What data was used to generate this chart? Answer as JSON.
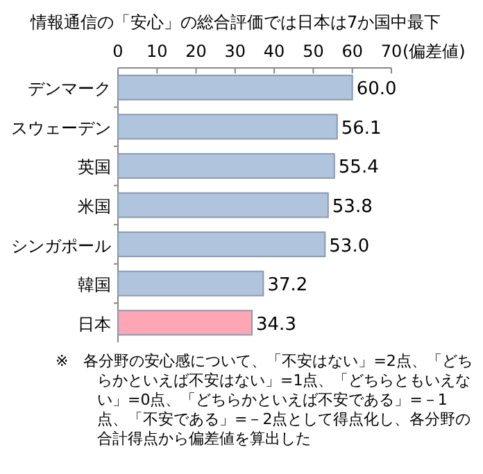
{
  "chart_data": {
    "type": "bar",
    "orientation": "horizontal",
    "title": "情報通信の「安心」の総合評価では日本は7か国中最下",
    "xlabel": "(偏差値)",
    "categories": [
      "デンマーク",
      "スウェーデン",
      "英国",
      "米国",
      "シンガポール",
      "韓国",
      "日本"
    ],
    "values": [
      60.0,
      56.1,
      55.4,
      53.8,
      53.0,
      37.2,
      34.3
    ],
    "colors": [
      "#b0c4de",
      "#b0c4de",
      "#b0c4de",
      "#b0c4de",
      "#b0c4de",
      "#b0c4de",
      "#ffa6b4"
    ],
    "value_labels": [
      "60.0",
      "56.1",
      "55.4",
      "53.8",
      "53.0",
      "37.2",
      "34.3"
    ],
    "xlim": [
      0,
      70
    ],
    "xticks": [
      0,
      10,
      20,
      30,
      40,
      50,
      60,
      70
    ],
    "grid": false,
    "annotations": [
      "※　各分野の安心感について、「不安はない」=2点、「どちらかといえば不安はない」=1点、「どちらともいえない」=0点、「どちらかといえば不安である」=－1点、「不安である」=－2点として得点化し、各分野の合計得点から偏差値を算出した"
    ]
  }
}
